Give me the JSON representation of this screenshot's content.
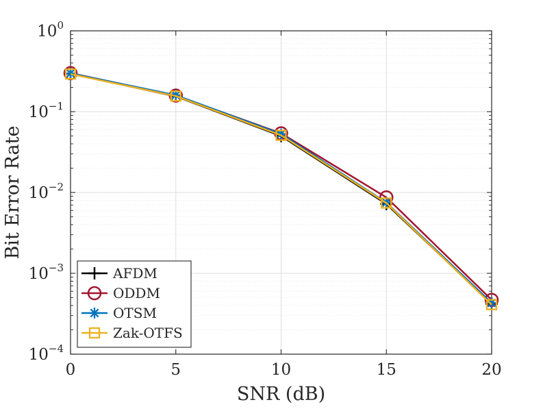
{
  "chart_data": {
    "type": "line",
    "title": "",
    "xlabel": "SNR (dB)",
    "ylabel": "Bit Error Rate",
    "yscale": "log",
    "xlim": [
      0,
      20
    ],
    "ylim_exp": [
      -4,
      0
    ],
    "grid": true,
    "x": [
      0,
      5,
      10,
      15,
      20
    ],
    "x_tick_labels": [
      "0",
      "5",
      "10",
      "15",
      "20"
    ],
    "y_ticks": [
      {
        "base": "10",
        "exp": "0"
      },
      {
        "base": "10",
        "exp": "−1"
      },
      {
        "base": "10",
        "exp": "−2"
      },
      {
        "base": "10",
        "exp": "−3"
      },
      {
        "base": "10",
        "exp": "−4"
      }
    ],
    "legend_position": "bottom-left",
    "series": [
      {
        "name": "AFDM",
        "marker": "plus",
        "color": "#000000",
        "values": [
          0.295,
          0.155,
          0.05,
          0.0072,
          0.00042
        ]
      },
      {
        "name": "ODDM",
        "marker": "circle",
        "color": "#A2142F",
        "values": [
          0.3,
          0.158,
          0.054,
          0.0087,
          0.00047
        ]
      },
      {
        "name": "OTSM",
        "marker": "asterisk",
        "color": "#0072BD",
        "values": [
          0.298,
          0.16,
          0.053,
          0.0075,
          0.00043
        ]
      },
      {
        "name": "Zak-OTFS",
        "marker": "square",
        "color": "#EDB120",
        "values": [
          0.292,
          0.156,
          0.051,
          0.0074,
          0.00041
        ]
      }
    ]
  }
}
